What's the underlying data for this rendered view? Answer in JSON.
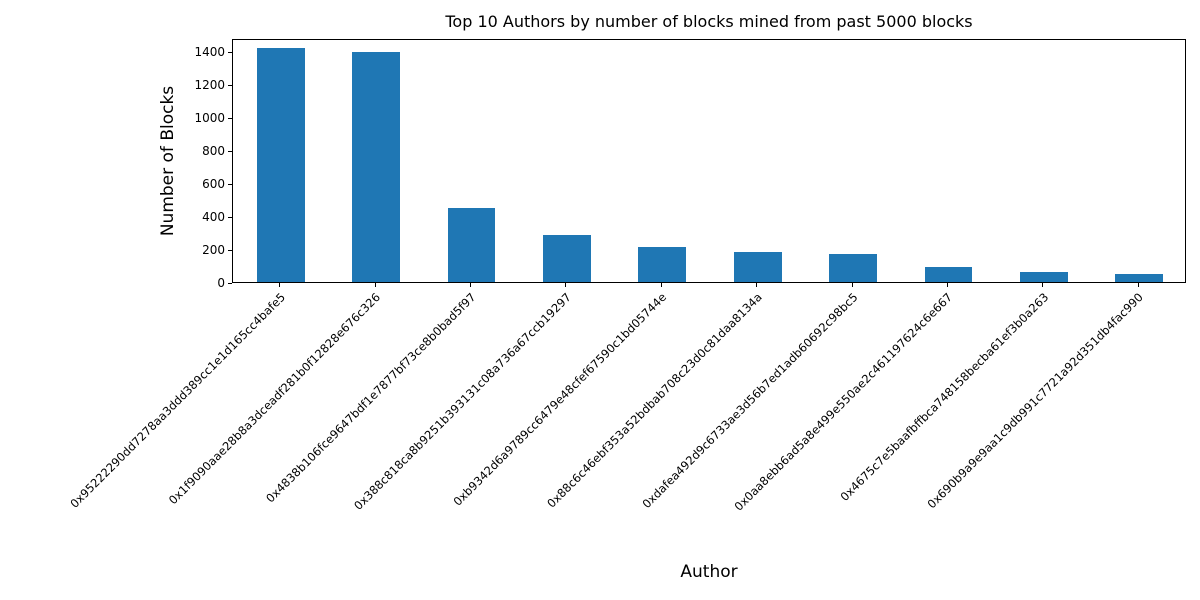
{
  "chart_data": {
    "type": "bar",
    "title": "Top 10 Authors by number of blocks mined from past 5000 blocks",
    "xlabel": "Author",
    "ylabel": "Number of Blocks",
    "categories": [
      "0x95222290dd7278aa3ddd389cc1e1d165cc4bafe5",
      "0x1f9090aae28b8a3dceadf281b0f12828e676c326",
      "0x4838b106fce9647bdf1e7877bf73ce8b0bad5f97",
      "0x388c818ca8b9251b393131c08a736a67ccb19297",
      "0xb9342d6a9789cc6479e48cfef67590c1bd05744e",
      "0x88c6c46ebf353a52bdbab708c23d0c81daa8134a",
      "0xdafea492d9c6733ae3d56b7ed1adb60692c98bc5",
      "0x0aa8ebb6ad5a8e499e550ae2c461197624c6e667",
      "0x4675c7e5baafbffbca748158becba61ef3b0a263",
      "0x690b9a9e9aa1c9db991c7721a92d351db4fac990"
    ],
    "values": [
      1420,
      1393,
      446,
      284,
      215,
      185,
      172,
      90,
      58,
      50
    ],
    "yticks": [
      0,
      200,
      400,
      600,
      800,
      1000,
      1200,
      1400
    ],
    "ylim": [
      0,
      1480
    ],
    "bar_color": "#1f77b4",
    "axis_color": "#000000",
    "grid": false,
    "x_tick_rotation": 45,
    "legend_position": "none"
  }
}
